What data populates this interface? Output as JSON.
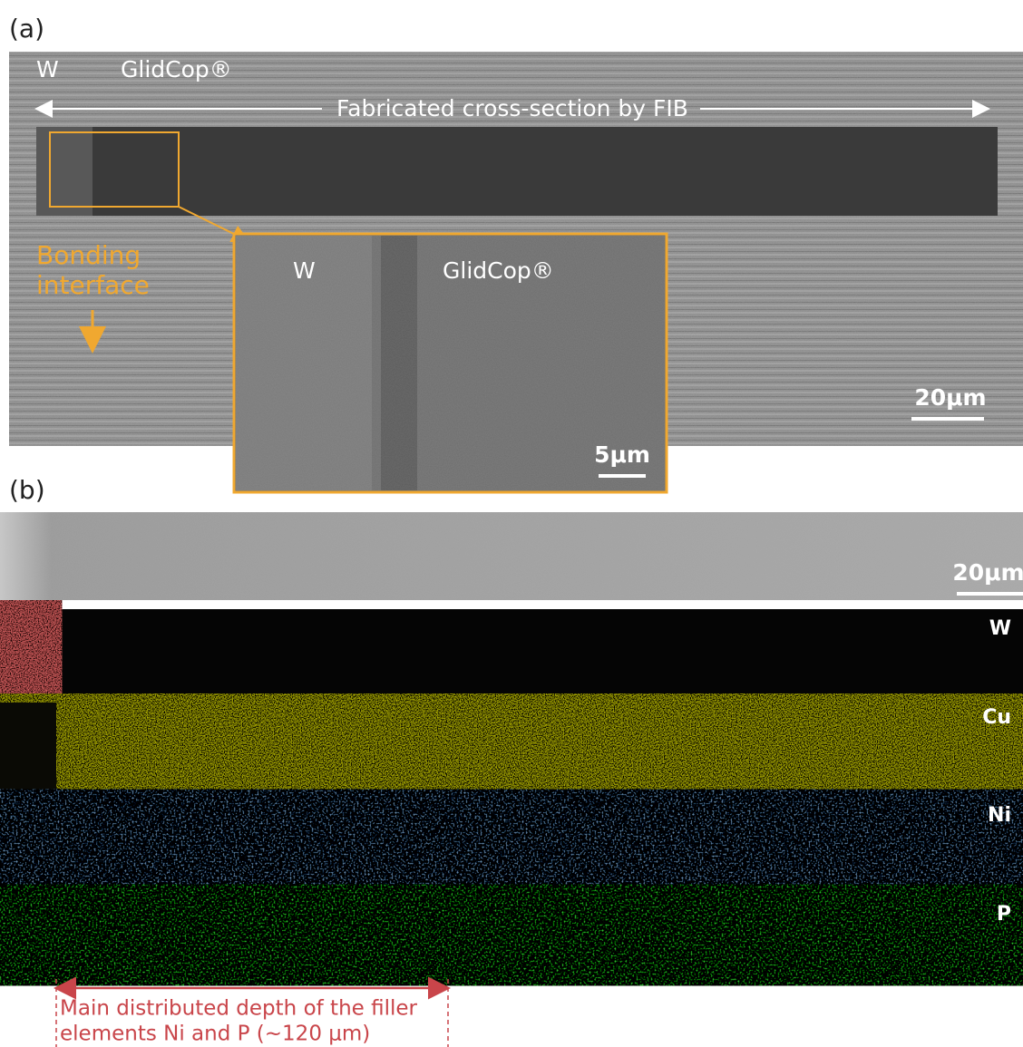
{
  "panel_a": {
    "label": "(a)",
    "materials": [
      "W",
      "GlidCop®"
    ],
    "fib_label": "Fabricated cross-section by FIB",
    "bonding_label": [
      "Bonding",
      "interface"
    ],
    "scale": "20μm",
    "inset": {
      "materials": [
        "W",
        "GlidCop®"
      ],
      "scale": "5μm"
    }
  },
  "panel_b": {
    "label": "(b)",
    "scale": "20μm",
    "maps": [
      "W",
      "Cu",
      "Ni",
      "P"
    ],
    "annotation": [
      "Main distributed depth of the filler",
      "elements Ni and P (~120 μm)"
    ]
  }
}
